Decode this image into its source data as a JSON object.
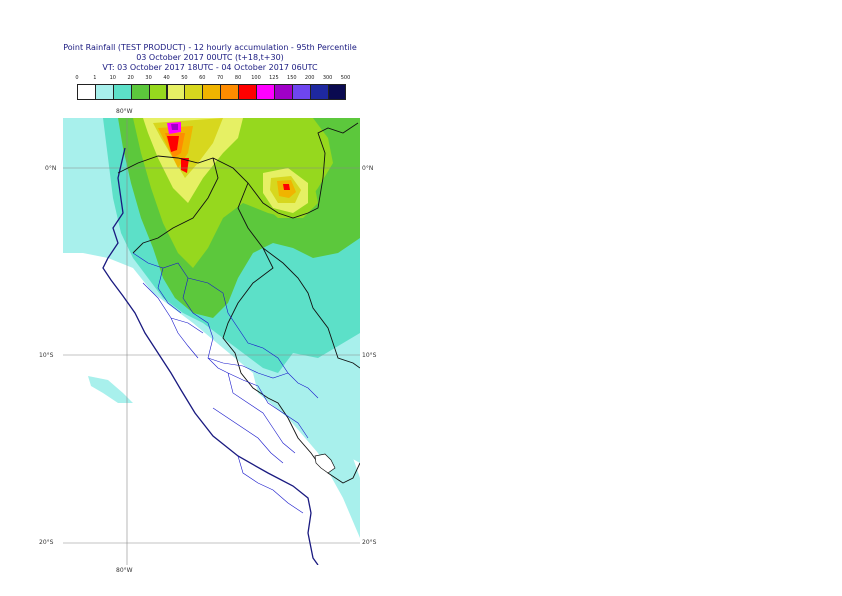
{
  "title": {
    "line1": "Point Rainfall (TEST PRODUCT) - 12 hourly accumulation - 95th Percentile",
    "line2": "03 October 2017 00UTC (t+18,t+30)",
    "line3": "VT: 03 October 2017 18UTC - 04 October 2017 06UTC"
  },
  "legend": {
    "thresholds": [
      "0",
      "1",
      "10",
      "20",
      "30",
      "40",
      "50",
      "60",
      "70",
      "80",
      "100",
      "125",
      "150",
      "200",
      "300",
      "500"
    ],
    "colors": [
      "#ffffff",
      "#a8f0ec",
      "#5ce0c8",
      "#5cc83c",
      "#96d81e",
      "#e6f064",
      "#d7d71e",
      "#f0b400",
      "#ff8c00",
      "#ff0000",
      "#ff00ff",
      "#a000c8",
      "#6e46f0",
      "#1e28a0",
      "#0a0a50"
    ]
  },
  "axes": {
    "lon_top": "80°W",
    "lon_bottom": "80°W",
    "lat_0_left": "0°N",
    "lat_0_right": "0°N",
    "lat_10_left": "10°S",
    "lat_10_right": "10°S",
    "lat_20_left": "20°S",
    "lat_20_right": "20°S"
  }
}
